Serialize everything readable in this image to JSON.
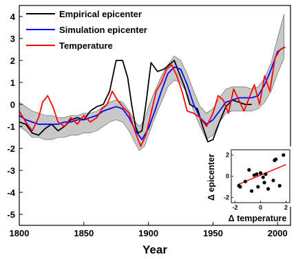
{
  "chart_data": [
    {
      "type": "line",
      "xlabel": "Year",
      "ylabel": "",
      "xlim": [
        1800,
        2010
      ],
      "ylim": [
        -5.5,
        4.5
      ],
      "xticks": [
        "1800",
        "1850",
        "1900",
        "1950",
        "2000"
      ],
      "yticks": [
        "4",
        "3",
        "2",
        "1",
        "0",
        "-1",
        "-2",
        "-3",
        "-4",
        "-5"
      ],
      "legend_position": "top-left",
      "grid": false,
      "band": {
        "color": "#c8c8c8",
        "x": [
          1800,
          1805,
          1810,
          1815,
          1820,
          1825,
          1830,
          1835,
          1840,
          1845,
          1850,
          1855,
          1860,
          1865,
          1870,
          1875,
          1880,
          1885,
          1890,
          1893,
          1897,
          1900,
          1905,
          1910,
          1915,
          1920,
          1925,
          1930,
          1935,
          1940,
          1945,
          1950,
          1955,
          1960,
          1965,
          1970,
          1975,
          1980,
          1985,
          1990,
          1995,
          2000,
          2005
        ],
        "upper": [
          0.1,
          -0.1,
          -0.3,
          -0.4,
          -0.5,
          -0.5,
          -0.6,
          -0.6,
          -0.5,
          -0.5,
          -0.4,
          -0.4,
          -0.3,
          -0.1,
          0.1,
          0.2,
          0.1,
          -0.3,
          -0.8,
          -1.0,
          -0.7,
          -0.1,
          0.6,
          1.3,
          1.8,
          2.2,
          2.0,
          1.4,
          0.6,
          -0.1,
          -0.4,
          -0.2,
          0.3,
          0.7,
          0.8,
          0.8,
          0.8,
          0.7,
          0.8,
          1.2,
          1.9,
          3.0,
          4.1
        ],
        "lower": [
          -1.0,
          -1.2,
          -1.5,
          -1.5,
          -1.6,
          -1.6,
          -1.5,
          -1.5,
          -1.4,
          -1.4,
          -1.3,
          -1.3,
          -1.2,
          -1.0,
          -0.8,
          -0.7,
          -0.8,
          -1.2,
          -1.8,
          -2.1,
          -1.9,
          -1.4,
          -0.6,
          0.1,
          0.8,
          1.1,
          1.0,
          0.5,
          -0.3,
          -1.0,
          -1.6,
          -1.4,
          -0.8,
          -0.4,
          -0.3,
          -0.3,
          -0.3,
          -0.3,
          -0.2,
          0.1,
          0.6,
          1.4,
          2.1
        ]
      },
      "series": [
        {
          "name": "Empirical epicenter",
          "color": "#000000",
          "x": [
            1800,
            1805,
            1810,
            1815,
            1820,
            1825,
            1830,
            1835,
            1840,
            1845,
            1850,
            1855,
            1860,
            1865,
            1870,
            1875,
            1878,
            1880,
            1884,
            1887,
            1890,
            1892,
            1895,
            1898,
            1902,
            1907,
            1912,
            1916,
            1920,
            1924,
            1928,
            1932,
            1938,
            1942,
            1946,
            1950,
            1955,
            1960,
            1965,
            1970,
            1975,
            1980
          ],
          "y": [
            -0.8,
            -0.9,
            -1.3,
            -1.4,
            -1.1,
            -0.9,
            -1.2,
            -1.0,
            -0.7,
            -0.6,
            -0.7,
            -0.3,
            -0.1,
            0.0,
            0.6,
            2.0,
            2.0,
            2.0,
            1.2,
            0.0,
            -1.0,
            -1.3,
            -1.2,
            0.0,
            1.9,
            1.5,
            1.6,
            1.8,
            2.0,
            1.4,
            0.8,
            0.0,
            -0.2,
            -1.0,
            -1.7,
            -1.6,
            -0.8,
            -0.1,
            0.2,
            0.1,
            0.0,
            0.0
          ]
        },
        {
          "name": "Simulation epicenter",
          "color": "#0000ff",
          "x": [
            1800,
            1805,
            1810,
            1815,
            1820,
            1825,
            1830,
            1835,
            1840,
            1845,
            1850,
            1855,
            1860,
            1865,
            1870,
            1875,
            1880,
            1885,
            1890,
            1895,
            1900,
            1905,
            1910,
            1915,
            1920,
            1925,
            1930,
            1935,
            1940,
            1945,
            1950,
            1955,
            1960,
            1965,
            1970,
            1975,
            1980,
            1985,
            1990,
            1995,
            2000,
            2005
          ],
          "y": [
            -0.5,
            -0.7,
            -0.8,
            -0.9,
            -0.9,
            -0.9,
            -0.9,
            -0.8,
            -0.8,
            -0.7,
            -0.7,
            -0.6,
            -0.5,
            -0.3,
            -0.2,
            -0.1,
            -0.2,
            -0.6,
            -1.2,
            -1.6,
            -1.1,
            -0.3,
            0.6,
            1.4,
            1.7,
            1.6,
            0.9,
            0.0,
            -0.6,
            -0.9,
            -0.7,
            -0.3,
            0.1,
            0.2,
            0.3,
            0.3,
            0.3,
            0.4,
            0.9,
            1.6,
            2.4,
            2.6
          ]
        },
        {
          "name": "Temperature",
          "color": "#ff0000",
          "x": [
            1800,
            1805,
            1810,
            1815,
            1818,
            1822,
            1826,
            1830,
            1835,
            1840,
            1845,
            1850,
            1855,
            1860,
            1864,
            1868,
            1872,
            1876,
            1880,
            1885,
            1890,
            1894,
            1898,
            1902,
            1906,
            1910,
            1914,
            1918,
            1922,
            1926,
            1930,
            1935,
            1940,
            1945,
            1950,
            1954,
            1958,
            1962,
            1966,
            1970,
            1974,
            1978,
            1982,
            1986,
            1990,
            1994,
            1998,
            2002,
            2006
          ],
          "y": [
            -0.3,
            -0.8,
            -1.2,
            -0.6,
            0.1,
            0.4,
            -0.1,
            -0.8,
            -1.0,
            -0.6,
            -0.9,
            -0.5,
            -0.8,
            -0.6,
            -0.2,
            0.0,
            0.6,
            0.2,
            -0.1,
            -0.4,
            -1.3,
            -1.9,
            -1.4,
            -0.4,
            0.6,
            1.0,
            1.6,
            1.8,
            1.3,
            0.6,
            -0.3,
            -0.4,
            -0.6,
            -1.0,
            -0.4,
            0.4,
            0.2,
            -0.4,
            0.7,
            0.2,
            -0.3,
            0.3,
            0.9,
            0.0,
            1.3,
            0.6,
            2.1,
            2.5,
            2.6
          ]
        }
      ]
    },
    {
      "type": "scatter",
      "xlabel": "Δ temperature",
      "ylabel": "Δ epicenter",
      "xlim": [
        -2.3,
        2.3
      ],
      "ylim": [
        -2.5,
        2.5
      ],
      "xticks": [
        "-2",
        "0",
        "2"
      ],
      "yticks": [
        "2",
        "0",
        "-2"
      ],
      "points": [
        [
          -1.7,
          -0.9
        ],
        [
          -1.6,
          -1.0
        ],
        [
          -1.2,
          -0.5
        ],
        [
          -0.9,
          0.6
        ],
        [
          -0.7,
          -1.4
        ],
        [
          -0.5,
          0.1
        ],
        [
          -0.3,
          0.2
        ],
        [
          -0.2,
          -1.0
        ],
        [
          0.0,
          0.3
        ],
        [
          0.2,
          -0.1
        ],
        [
          0.3,
          -0.6
        ],
        [
          0.4,
          0.2
        ],
        [
          0.6,
          -1.2
        ],
        [
          1.0,
          -0.4
        ],
        [
          1.1,
          1.5
        ],
        [
          1.2,
          1.6
        ],
        [
          1.5,
          -0.9
        ],
        [
          1.8,
          2.0
        ]
      ],
      "fit_line": {
        "color": "#ff0000",
        "x": [
          -1.8,
          2.0
        ],
        "y": [
          -0.8,
          1.1
        ]
      }
    }
  ]
}
